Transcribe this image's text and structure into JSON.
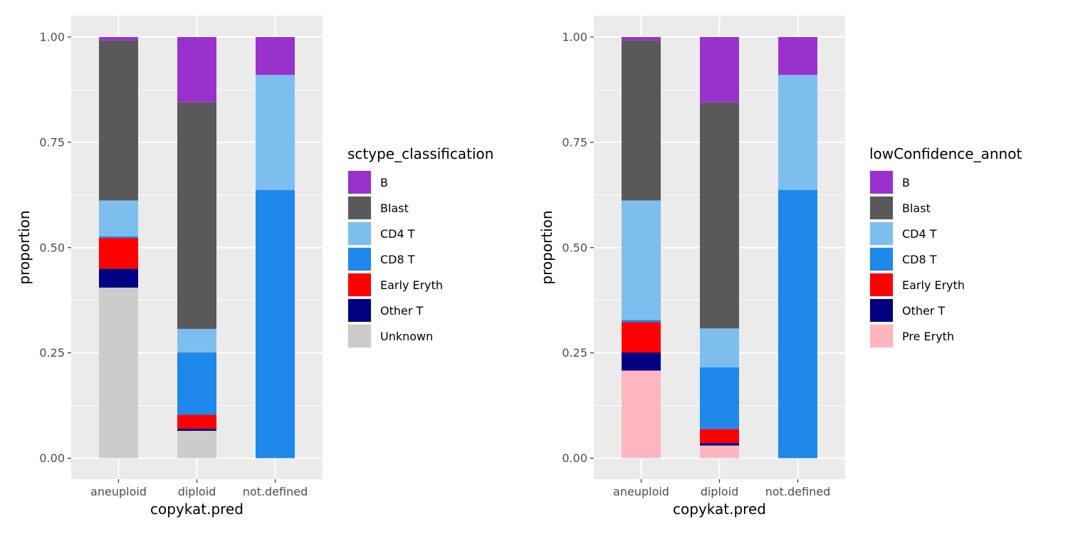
{
  "chart_data": [
    {
      "type": "bar",
      "stacked": true,
      "xlabel": "copykat.pred",
      "ylabel": "proportion",
      "ylim": [
        0,
        1
      ],
      "yticks": [
        "0.00",
        "0.25",
        "0.50",
        "0.75",
        "1.00"
      ],
      "categories": [
        "aneuploid",
        "diploid",
        "not.defined"
      ],
      "legend_title": "sctype_classification",
      "legend_placement": "right",
      "grid": true,
      "series": [
        {
          "name": "Unknown",
          "color": "#cccccc",
          "values": [
            0.405,
            0.065,
            0.0
          ]
        },
        {
          "name": "Other T",
          "color": "#000080",
          "values": [
            0.045,
            0.005,
            0.0
          ]
        },
        {
          "name": "Early Eryth",
          "color": "#ff0000",
          "values": [
            0.073,
            0.033,
            0.0
          ]
        },
        {
          "name": "CD8 T",
          "color": "#1e88eb",
          "values": [
            0.004,
            0.148,
            0.637
          ]
        },
        {
          "name": "CD4 T",
          "color": "#7cbfee",
          "values": [
            0.085,
            0.056,
            0.273
          ]
        },
        {
          "name": "Blast",
          "color": "#595959",
          "values": [
            0.38,
            0.538,
            0.0
          ]
        },
        {
          "name": "B",
          "color": "#9932cc",
          "values": [
            0.008,
            0.155,
            0.09
          ]
        }
      ],
      "legend_order": [
        "B",
        "Blast",
        "CD4 T",
        "CD8 T",
        "Early Eryth",
        "Other T",
        "Unknown"
      ]
    },
    {
      "type": "bar",
      "stacked": true,
      "xlabel": "copykat.pred",
      "ylabel": "proportion",
      "ylim": [
        0,
        1
      ],
      "yticks": [
        "0.00",
        "0.25",
        "0.50",
        "0.75",
        "1.00"
      ],
      "categories": [
        "aneuploid",
        "diploid",
        "not.defined"
      ],
      "legend_title": "lowConfidence_annot",
      "legend_placement": "right",
      "grid": true,
      "series": [
        {
          "name": "Pre Eryth",
          "color": "#ffb6c1",
          "values": [
            0.208,
            0.03,
            0.0
          ]
        },
        {
          "name": "Other T",
          "color": "#000080",
          "values": [
            0.043,
            0.006,
            0.0
          ]
        },
        {
          "name": "Early Eryth",
          "color": "#ff0000",
          "values": [
            0.072,
            0.033,
            0.0
          ]
        },
        {
          "name": "CD8 T",
          "color": "#1e88eb",
          "values": [
            0.005,
            0.147,
            0.637
          ]
        },
        {
          "name": "CD4 T",
          "color": "#7cbfee",
          "values": [
            0.284,
            0.092,
            0.273
          ]
        },
        {
          "name": "Blast",
          "color": "#595959",
          "values": [
            0.38,
            0.537,
            0.0
          ]
        },
        {
          "name": "B",
          "color": "#9932cc",
          "values": [
            0.008,
            0.155,
            0.09
          ]
        }
      ],
      "legend_order": [
        "B",
        "Blast",
        "CD4 T",
        "CD8 T",
        "Early Eryth",
        "Other T",
        "Pre Eryth"
      ]
    }
  ]
}
